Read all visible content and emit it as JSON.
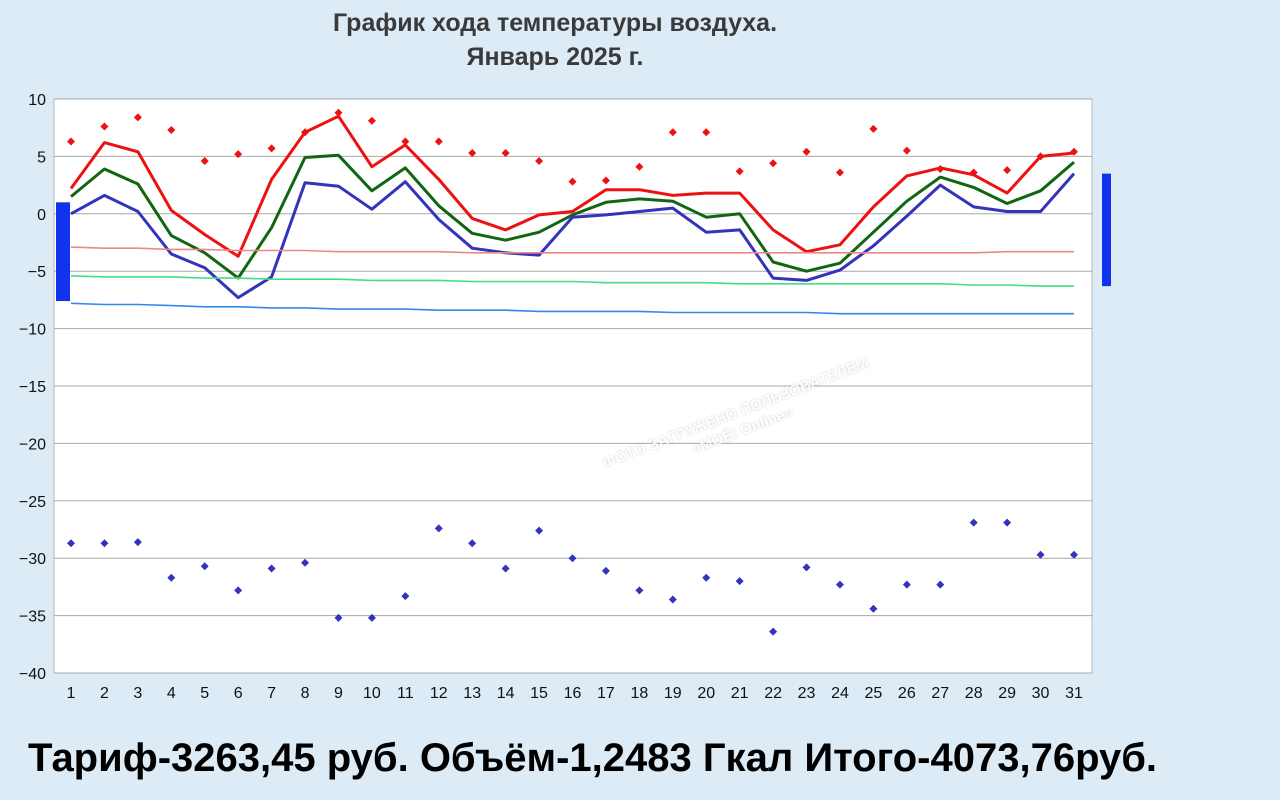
{
  "chart_data": {
    "type": "line",
    "title": "График хода температуры воздуха.",
    "subtitle": "Январь 2025 г.",
    "xlabel": "",
    "ylabel": "",
    "ylim": [
      -40,
      10
    ],
    "yticks": [
      10,
      5,
      0,
      -5,
      -10,
      -15,
      -20,
      -25,
      -30,
      -35,
      -40
    ],
    "x": [
      1,
      2,
      3,
      4,
      5,
      6,
      7,
      8,
      9,
      10,
      11,
      12,
      13,
      14,
      15,
      16,
      17,
      18,
      19,
      20,
      21,
      22,
      23,
      24,
      25,
      26,
      27,
      28,
      29,
      30,
      31
    ],
    "grid": "horizontal",
    "series": [
      {
        "color": "#ee1111",
        "kind": "line",
        "values": [
          2.2,
          6.2,
          5.4,
          0.3,
          -1.8,
          -3.7,
          3.0,
          7.1,
          8.5,
          4.1,
          6.0,
          3.0,
          -0.4,
          -1.4,
          -0.1,
          0.2,
          2.1,
          2.1,
          1.6,
          1.8,
          1.8,
          -1.4,
          -3.3,
          -2.7,
          0.6,
          3.3,
          4.0,
          3.4,
          1.8,
          5.0,
          5.3
        ]
      },
      {
        "color": "#116611",
        "kind": "line",
        "values": [
          1.5,
          3.9,
          2.6,
          -1.9,
          -3.4,
          -5.6,
          -1.2,
          4.9,
          5.1,
          2.0,
          4.0,
          0.7,
          -1.7,
          -2.3,
          -1.6,
          -0.1,
          1.0,
          1.3,
          1.1,
          -0.3,
          0.0,
          -4.2,
          -5.0,
          -4.3,
          -1.6,
          1.1,
          3.2,
          2.3,
          0.9,
          2.0,
          4.5
        ]
      },
      {
        "color": "#3333bb",
        "kind": "line",
        "values": [
          0.0,
          1.6,
          0.2,
          -3.5,
          -4.7,
          -7.3,
          -5.5,
          2.7,
          2.4,
          0.4,
          2.8,
          -0.5,
          -3.0,
          -3.4,
          -3.6,
          -0.3,
          -0.1,
          0.2,
          0.5,
          -1.6,
          -1.4,
          -5.6,
          -5.8,
          -4.9,
          -2.8,
          -0.2,
          2.5,
          0.6,
          0.2,
          0.2,
          3.5
        ]
      },
      {
        "color": "#ee8888",
        "kind": "line",
        "values": [
          -2.9,
          -3.0,
          -3.0,
          -3.1,
          -3.1,
          -3.2,
          -3.2,
          -3.2,
          -3.3,
          -3.3,
          -3.3,
          -3.3,
          -3.4,
          -3.4,
          -3.4,
          -3.4,
          -3.4,
          -3.4,
          -3.4,
          -3.4,
          -3.4,
          -3.4,
          -3.4,
          -3.4,
          -3.4,
          -3.4,
          -3.4,
          -3.4,
          -3.3,
          -3.3,
          -3.3
        ]
      },
      {
        "color": "#44dd88",
        "kind": "line",
        "values": [
          -5.4,
          -5.5,
          -5.5,
          -5.5,
          -5.6,
          -5.6,
          -5.7,
          -5.7,
          -5.7,
          -5.8,
          -5.8,
          -5.8,
          -5.9,
          -5.9,
          -5.9,
          -5.9,
          -6.0,
          -6.0,
          -6.0,
          -6.0,
          -6.1,
          -6.1,
          -6.1,
          -6.1,
          -6.1,
          -6.1,
          -6.1,
          -6.2,
          -6.2,
          -6.3,
          -6.3
        ]
      },
      {
        "color": "#3388ee",
        "kind": "line",
        "values": [
          -7.8,
          -7.9,
          -7.9,
          -8.0,
          -8.1,
          -8.1,
          -8.2,
          -8.2,
          -8.3,
          -8.3,
          -8.3,
          -8.4,
          -8.4,
          -8.4,
          -8.5,
          -8.5,
          -8.5,
          -8.5,
          -8.6,
          -8.6,
          -8.6,
          -8.6,
          -8.6,
          -8.7,
          -8.7,
          -8.7,
          -8.7,
          -8.7,
          -8.7,
          -8.7,
          -8.7
        ]
      },
      {
        "color": "#ee1111",
        "kind": "markers",
        "values": [
          6.3,
          7.6,
          8.4,
          7.3,
          4.6,
          5.2,
          5.7,
          7.1,
          8.8,
          8.1,
          6.3,
          6.3,
          5.3,
          5.3,
          4.6,
          2.8,
          2.9,
          4.1,
          7.1,
          7.1,
          3.7,
          4.4,
          5.4,
          3.6,
          7.4,
          5.5,
          3.9,
          3.6,
          3.8,
          5.0,
          5.4
        ]
      },
      {
        "color": "#3333bb",
        "kind": "markers",
        "values": [
          -28.7,
          -28.7,
          -28.6,
          -31.7,
          -30.7,
          -32.8,
          -30.9,
          -30.4,
          -35.2,
          -35.2,
          -33.3,
          -27.4,
          -28.7,
          -30.9,
          -27.6,
          -30.0,
          -31.1,
          -32.8,
          -33.6,
          -31.7,
          -32.0,
          -36.4,
          -30.8,
          -32.3,
          -34.4,
          -32.3,
          -32.3,
          -26.9,
          -26.9,
          -29.7,
          -29.7
        ]
      }
    ],
    "left_bar": {
      "color": "#1133ee",
      "from": 1.0,
      "to": -7.6
    },
    "right_bar": {
      "color": "#1133ee",
      "from": 3.5,
      "to": -6.3
    }
  },
  "caption": "Тариф-3263,45 руб. Объём-1,2483 Гкал Итого-4073,76руб.",
  "watermark_line1": "ФОТО ЗАГРУЖЕНО ПОЛЬЗОВАТЕЛЕМ",
  "watermark_line2": "«MOЁ! Online»"
}
